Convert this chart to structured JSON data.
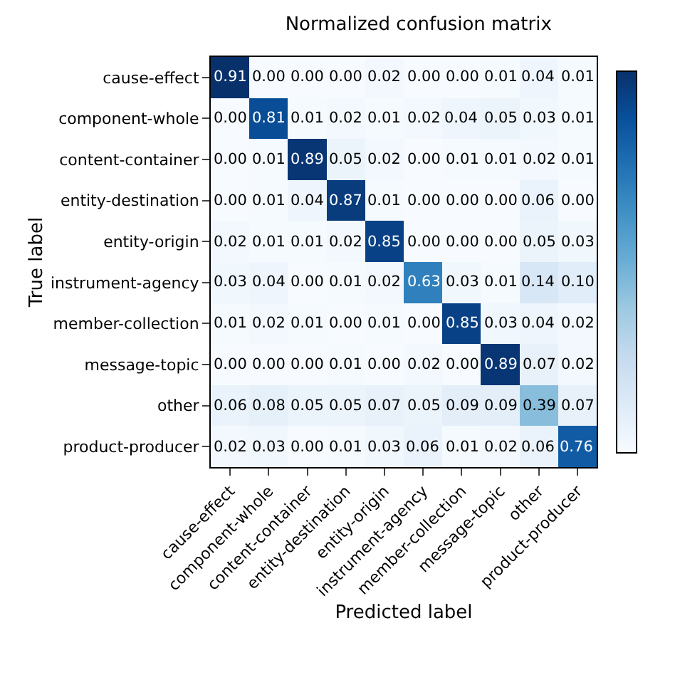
{
  "chart_data": {
    "type": "heatmap",
    "title": "Normalized confusion matrix",
    "xlabel": "Predicted label",
    "ylabel": "True label",
    "data_labels": true,
    "categories": [
      "cause-effect",
      "component-whole",
      "content-container",
      "entity-destination",
      "entity-origin",
      "instrument-agency",
      "member-collection",
      "message-topic",
      "other",
      "product-producer"
    ],
    "y_categories": [
      "cause-effect",
      "component-whole",
      "content-container",
      "entity-destination",
      "entity-origin",
      "instrument-agency",
      "member-collection",
      "message-topic",
      "other",
      "product-producer"
    ],
    "cells": [
      [
        0.91,
        0.0,
        0.0,
        0.0,
        0.02,
        0.0,
        0.0,
        0.01,
        0.04,
        0.01
      ],
      [
        0.0,
        0.81,
        0.01,
        0.02,
        0.01,
        0.02,
        0.04,
        0.05,
        0.03,
        0.01
      ],
      [
        0.0,
        0.01,
        0.89,
        0.05,
        0.02,
        0.0,
        0.01,
        0.01,
        0.02,
        0.01
      ],
      [
        0.0,
        0.01,
        0.04,
        0.87,
        0.01,
        0.0,
        0.0,
        0.0,
        0.06,
        0.0
      ],
      [
        0.02,
        0.01,
        0.01,
        0.02,
        0.85,
        0.0,
        0.0,
        0.0,
        0.05,
        0.03
      ],
      [
        0.03,
        0.04,
        0.0,
        0.01,
        0.02,
        0.63,
        0.03,
        0.01,
        0.14,
        0.1
      ],
      [
        0.01,
        0.02,
        0.01,
        0.0,
        0.01,
        0.0,
        0.85,
        0.03,
        0.04,
        0.02
      ],
      [
        0.0,
        0.0,
        0.0,
        0.01,
        0.0,
        0.02,
        0.0,
        0.89,
        0.07,
        0.02
      ],
      [
        0.06,
        0.08,
        0.05,
        0.05,
        0.07,
        0.05,
        0.09,
        0.09,
        0.39,
        0.07
      ],
      [
        0.02,
        0.03,
        0.0,
        0.01,
        0.03,
        0.06,
        0.01,
        0.02,
        0.06,
        0.76
      ]
    ],
    "cell_labels": [
      [
        "0.91",
        "0.00",
        "0.00",
        "0.00",
        "0.02",
        "0.00",
        "0.00",
        "0.01",
        "0.04",
        "0.01"
      ],
      [
        "0.00",
        "0.81",
        "0.01",
        "0.02",
        "0.01",
        "0.02",
        "0.04",
        "0.05",
        "0.03",
        "0.01"
      ],
      [
        "0.00",
        "0.01",
        "0.89",
        "0.05",
        "0.02",
        "0.00",
        "0.01",
        "0.01",
        "0.02",
        "0.01"
      ],
      [
        "0.00",
        "0.01",
        "0.04",
        "0.87",
        "0.01",
        "0.00",
        "0.00",
        "0.00",
        "0.06",
        "0.00"
      ],
      [
        "0.02",
        "0.01",
        "0.01",
        "0.02",
        "0.85",
        "0.00",
        "0.00",
        "0.00",
        "0.05",
        "0.03"
      ],
      [
        "0.03",
        "0.04",
        "0.00",
        "0.01",
        "0.02",
        "0.63",
        "0.03",
        "0.01",
        "0.14",
        "0.10"
      ],
      [
        "0.01",
        "0.02",
        "0.01",
        "0.00",
        "0.01",
        "0.00",
        "0.85",
        "0.03",
        "0.04",
        "0.02"
      ],
      [
        "0.00",
        "0.00",
        "0.00",
        "0.01",
        "0.00",
        "0.02",
        "0.00",
        "0.89",
        "0.07",
        "0.02"
      ],
      [
        "0.06",
        "0.08",
        "0.05",
        "0.05",
        "0.07",
        "0.05",
        "0.09",
        "0.09",
        "0.39",
        "0.07"
      ],
      [
        "0.02",
        "0.03",
        "0.00",
        "0.01",
        "0.03",
        "0.06",
        "0.01",
        "0.02",
        "0.06",
        "0.76"
      ]
    ]
  }
}
